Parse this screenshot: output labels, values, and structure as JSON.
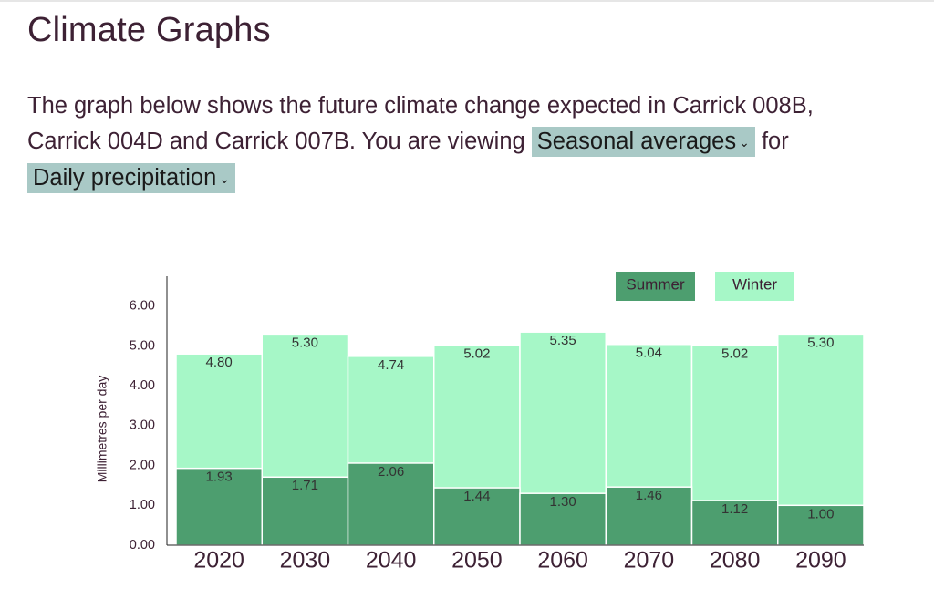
{
  "header": {
    "title": "Climate Graphs"
  },
  "description": {
    "line1": "The graph below shows the future climate change expected in Carrick 008B,",
    "line2": "Carrick 004D and Carrick 007B. You are viewing",
    "dropdown1": "Seasonal averages",
    "middle": "for",
    "dropdown2": "Daily precipitation"
  },
  "chart_data": {
    "type": "bar",
    "barmode": "overlay",
    "categories": [
      "2020",
      "2030",
      "2040",
      "2050",
      "2060",
      "2070",
      "2080",
      "2090"
    ],
    "y_axis_label": "Millimetres per day",
    "series": [
      {
        "name": "Winter",
        "color": "#a6f7c7",
        "values": [
          4.8,
          5.3,
          4.74,
          5.02,
          5.35,
          5.04,
          5.02,
          5.3
        ],
        "value_labels": [
          "4.80",
          "5.30",
          "4.74",
          "5.02",
          "5.35",
          "5.04",
          "5.02",
          "5.30"
        ]
      },
      {
        "name": "Summer",
        "color": "#4d9e6f",
        "values": [
          1.93,
          1.71,
          2.06,
          1.44,
          1.3,
          1.46,
          1.12,
          1.0
        ],
        "value_labels": [
          "1.93",
          "1.71",
          "2.06",
          "1.44",
          "1.30",
          "1.46",
          "1.12",
          "1.00"
        ]
      }
    ],
    "ylim": [
      0,
      6.75
    ],
    "yticks": [
      {
        "value": 0,
        "label": "0.00"
      },
      {
        "value": 1,
        "label": "1.00"
      },
      {
        "value": 2,
        "label": "2.00"
      },
      {
        "value": 3,
        "label": "3.00"
      },
      {
        "value": 4,
        "label": "4.00"
      },
      {
        "value": 5,
        "label": "5.00"
      },
      {
        "value": 6,
        "label": "6.00"
      }
    ],
    "legend": "top-right"
  }
}
